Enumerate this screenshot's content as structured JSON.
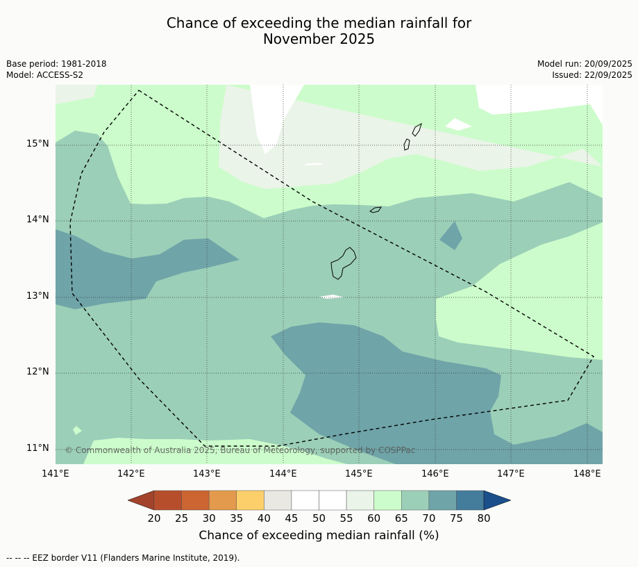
{
  "title": {
    "line1": "Chance of exceeding the median rainfall for",
    "line2": "November 2025"
  },
  "meta": {
    "base_period": "Base period: 1981-2018",
    "model": "Model: ACCESS-S2",
    "model_run": "Model run: 20/09/2025",
    "issued": "Issued: 22/09/2025"
  },
  "map": {
    "lat_labels": [
      "15°N",
      "14°N",
      "13°N",
      "12°N",
      "11°N"
    ],
    "lon_labels": [
      "141°E",
      "142°E",
      "143°E",
      "144°E",
      "145°E",
      "146°E",
      "147°E",
      "148°E"
    ],
    "copyright": "© Commonwealth of Australia 2025, Bureau of Meteorology, supported by COSPPac",
    "colors": {
      "c55_60": "#eaf4e8",
      "c60_65": "#ccfccb",
      "c65_70": "#9ccfb8",
      "c70_75": "#6fa4a8",
      "border": "#000000"
    }
  },
  "colorbar": {
    "labels": [
      "20",
      "25",
      "30",
      "35",
      "40",
      "45",
      "50",
      "55",
      "60",
      "65",
      "70",
      "75",
      "80"
    ],
    "colors": [
      "#a3432b",
      "#b64e2c",
      "#cc6532",
      "#e39a4c",
      "#fccf6a",
      "#eae8e3",
      "#ffffff",
      "#ffffff",
      "#eaf4e8",
      "#ccfccb",
      "#9ccfb8",
      "#6fa4a8",
      "#447c9c",
      "#1a4f8c"
    ],
    "title": "Chance of exceeding median rainfall (%)"
  },
  "legend": {
    "eez": "--  --  -- EEZ border V11 (Flanders Marine Institute, 2019)."
  }
}
